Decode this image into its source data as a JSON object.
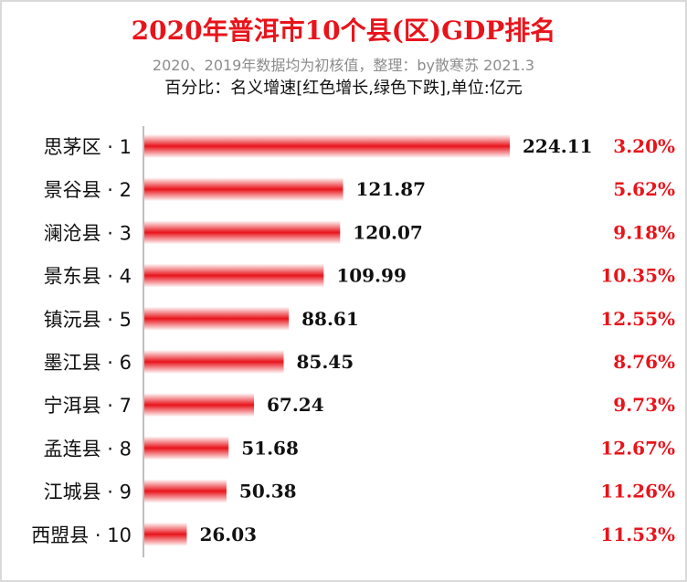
{
  "chart_data": {
    "type": "bar",
    "orientation": "horizontal",
    "title": "2020年普洱市10个县(区)GDP排名",
    "subtitle": "2020、2019年数据均为初核值，整理：by散寒苏 2021.3",
    "note": "百分比：名义增速[红色增长,绿色下跌],单位:亿元",
    "categories": [
      "思茅区 · 1",
      "景谷县 · 2",
      "澜沧县 · 3",
      "景东县 · 4",
      "镇沅县 · 5",
      "墨江县 · 6",
      "宁洱县 · 7",
      "孟连县 · 8",
      "江城县 · 9",
      "西盟县 · 10"
    ],
    "values": [
      224.11,
      121.87,
      120.07,
      109.99,
      88.61,
      85.45,
      67.24,
      51.68,
      50.38,
      26.03
    ],
    "value_labels": [
      "224.11",
      "121.87",
      "120.07",
      "109.99",
      "88.61",
      "85.45",
      "67.24",
      "51.68",
      "50.38",
      "26.03"
    ],
    "growth_labels": [
      "3.20%",
      "5.62%",
      "9.18%",
      "10.35%",
      "12.55%",
      "8.76%",
      "9.73%",
      "12.67%",
      "11.26%",
      "11.53%"
    ],
    "bar_color": "#e8141b",
    "growth_color": "#e8141b",
    "xlim": [
      0,
      224.11
    ],
    "grid": false,
    "legend": "none"
  }
}
